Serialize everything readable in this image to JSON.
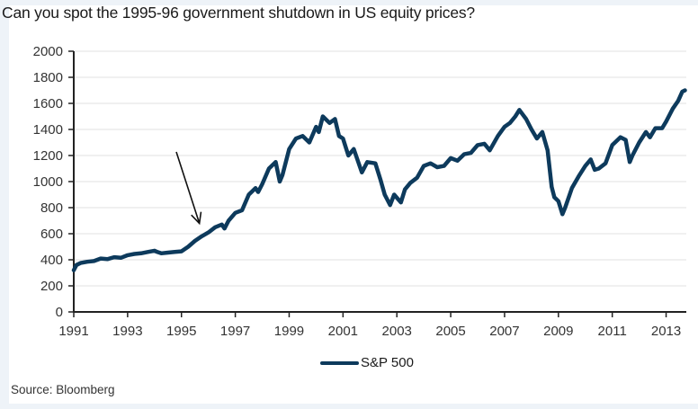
{
  "title": "Can you spot the 1995-96 government shutdown in US equity prices?",
  "source": "Source: Bloomberg",
  "legend": {
    "label": "S&P 500"
  },
  "colors": {
    "line": "#0d3a5c",
    "grid": "#e2e2e2",
    "axis": "#222222",
    "background": "#eef3f8",
    "annotation_arrow": "#111111"
  },
  "chart_data": {
    "type": "line",
    "title": "Can you spot the 1995-96 government shutdown in US equity prices?",
    "xlabel": "",
    "ylabel": "",
    "xlim": [
      1991,
      2013.75
    ],
    "ylim": [
      0,
      2000
    ],
    "grid": true,
    "legend_position": "bottom-center",
    "y_ticks": [
      0,
      200,
      400,
      600,
      800,
      1000,
      1200,
      1400,
      1600,
      1800,
      2000
    ],
    "y_tick_labels": [
      "0",
      "200",
      "400",
      "600",
      "800",
      "1000",
      "1200",
      "1400",
      "1600",
      "1800",
      "2000"
    ],
    "x_ticks": [
      1991,
      1993,
      1995,
      1997,
      1999,
      2001,
      2003,
      2005,
      2007,
      2009,
      2011,
      2013
    ],
    "x_tick_labels": [
      "1991",
      "1993",
      "1995",
      "1997",
      "1999",
      "2001",
      "2003",
      "2005",
      "2007",
      "2009",
      "2011",
      "2013"
    ],
    "annotation": {
      "type": "arrow",
      "label": "1995-96 government shutdown",
      "points_to": [
        1995.8,
        610
      ]
    },
    "series": [
      {
        "name": "S&P 500",
        "x": [
          1991.0,
          1991.1,
          1991.25,
          1991.5,
          1991.75,
          1992.0,
          1992.25,
          1992.5,
          1992.75,
          1993.0,
          1993.25,
          1993.5,
          1993.75,
          1994.0,
          1994.1,
          1994.25,
          1994.5,
          1994.75,
          1995.0,
          1995.25,
          1995.5,
          1995.75,
          1996.0,
          1996.25,
          1996.5,
          1996.6,
          1996.75,
          1997.0,
          1997.25,
          1997.5,
          1997.75,
          1997.85,
          1998.0,
          1998.25,
          1998.5,
          1998.65,
          1998.75,
          1999.0,
          1999.25,
          1999.5,
          1999.75,
          2000.0,
          2000.1,
          2000.25,
          2000.5,
          2000.7,
          2000.85,
          2001.0,
          2001.2,
          2001.4,
          2001.7,
          2001.9,
          2002.2,
          2002.4,
          2002.55,
          2002.75,
          2002.9,
          2003.15,
          2003.3,
          2003.5,
          2003.75,
          2004.0,
          2004.25,
          2004.5,
          2004.75,
          2005.0,
          2005.25,
          2005.5,
          2005.75,
          2006.0,
          2006.25,
          2006.45,
          2006.75,
          2007.0,
          2007.2,
          2007.4,
          2007.55,
          2007.8,
          2008.0,
          2008.2,
          2008.4,
          2008.6,
          2008.75,
          2008.85,
          2009.0,
          2009.15,
          2009.25,
          2009.5,
          2009.75,
          2010.0,
          2010.2,
          2010.35,
          2010.5,
          2010.75,
          2011.0,
          2011.3,
          2011.5,
          2011.65,
          2011.75,
          2012.0,
          2012.25,
          2012.4,
          2012.6,
          2012.85,
          2013.0,
          2013.25,
          2013.45,
          2013.6,
          2013.7
        ],
        "values": [
          320,
          360,
          375,
          385,
          390,
          410,
          405,
          420,
          415,
          435,
          445,
          450,
          460,
          470,
          460,
          450,
          455,
          460,
          465,
          500,
          545,
          580,
          610,
          650,
          670,
          640,
          700,
          760,
          780,
          900,
          950,
          920,
          980,
          1100,
          1150,
          1000,
          1050,
          1250,
          1330,
          1350,
          1300,
          1420,
          1380,
          1500,
          1450,
          1480,
          1350,
          1330,
          1200,
          1250,
          1070,
          1150,
          1140,
          1010,
          900,
          820,
          900,
          840,
          940,
          990,
          1030,
          1120,
          1140,
          1110,
          1120,
          1180,
          1160,
          1210,
          1220,
          1280,
          1290,
          1240,
          1350,
          1420,
          1450,
          1500,
          1550,
          1480,
          1400,
          1330,
          1380,
          1240,
          960,
          880,
          850,
          750,
          800,
          950,
          1040,
          1120,
          1170,
          1090,
          1100,
          1140,
          1280,
          1340,
          1320,
          1150,
          1200,
          1300,
          1380,
          1340,
          1410,
          1410,
          1460,
          1560,
          1620,
          1690,
          1700
        ]
      }
    ]
  }
}
